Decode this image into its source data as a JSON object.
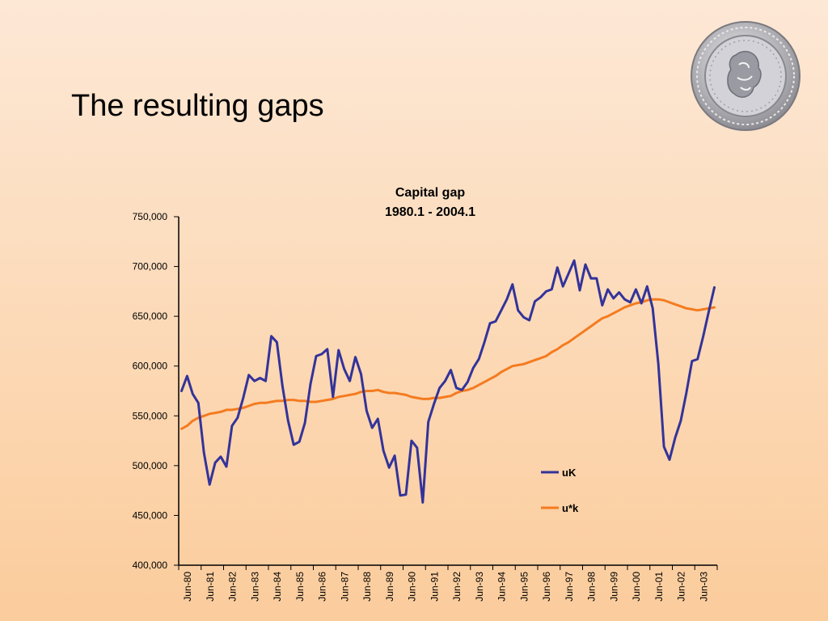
{
  "slide": {
    "title": "The resulting gaps"
  },
  "chart_data": {
    "type": "line",
    "title": "Capital gap",
    "subtitle": "1980.1 - 2004.1",
    "xlabel": "",
    "ylabel": "",
    "ylim": [
      400000,
      750000
    ],
    "y_ticks": [
      "400,000",
      "450,000",
      "500,000",
      "550,000",
      "600,000",
      "650,000",
      "700,000",
      "750,000"
    ],
    "x_ticks": [
      "Jun-80",
      "Jun-81",
      "Jun-82",
      "Jun-83",
      "Jun-84",
      "Jun-85",
      "Jun-86",
      "Jun-87",
      "Jun-88",
      "Jun-89",
      "Jun-90",
      "Jun-91",
      "Jun-92",
      "Jun-93",
      "Jun-94",
      "Jun-95",
      "Jun-96",
      "Jun-97",
      "Jun-98",
      "Jun-99",
      "Jun-00",
      "Jun-01",
      "Jun-02",
      "Jun-03"
    ],
    "x_start": "1980.1",
    "x_end": "2004.1",
    "frequency": "quarterly",
    "grid": false,
    "legend_position": "lower-right",
    "series": [
      {
        "name": "uK",
        "color": "#33339a",
        "values": [
          575000,
          590000,
          572000,
          563000,
          513000,
          481000,
          503000,
          509000,
          499000,
          540000,
          548000,
          568000,
          591000,
          585000,
          588000,
          585000,
          630000,
          624000,
          580000,
          545000,
          521000,
          524000,
          543000,
          582000,
          610000,
          612000,
          617000,
          569000,
          616000,
          597000,
          585000,
          609000,
          592000,
          555000,
          538000,
          547000,
          515000,
          498000,
          510000,
          470000,
          471000,
          525000,
          518000,
          463000,
          544000,
          562000,
          578000,
          585000,
          596000,
          578000,
          576000,
          584000,
          598000,
          607000,
          624000,
          643000,
          645000,
          656000,
          667000,
          682000,
          656000,
          649000,
          646000,
          665000,
          669000,
          675000,
          677000,
          699000,
          680000,
          693000,
          706000,
          676000,
          702000,
          688000,
          688000,
          661000,
          677000,
          668000,
          674000,
          667000,
          664000,
          677000,
          663000,
          680000,
          658000,
          602000,
          519000,
          506000,
          528000,
          545000,
          573000,
          605000,
          607000,
          630000,
          655000,
          679000
        ]
      },
      {
        "name": "u*k",
        "color": "#f47b20",
        "values": [
          537000,
          540000,
          545000,
          548000,
          550000,
          552000,
          553000,
          554000,
          556000,
          556000,
          557000,
          558000,
          560000,
          562000,
          563000,
          563000,
          564000,
          565000,
          565000,
          566000,
          566000,
          565000,
          565000,
          564000,
          564000,
          565000,
          566000,
          567000,
          569000,
          570000,
          571000,
          572000,
          574000,
          575000,
          575000,
          576000,
          574000,
          573000,
          573000,
          572000,
          571000,
          569000,
          568000,
          567000,
          567000,
          568000,
          568000,
          569000,
          570000,
          573000,
          575000,
          576000,
          578000,
          581000,
          584000,
          587000,
          590000,
          594000,
          597000,
          600000,
          601000,
          602000,
          604000,
          606000,
          608000,
          610000,
          614000,
          617000,
          621000,
          624000,
          628000,
          632000,
          636000,
          640000,
          644000,
          648000,
          650000,
          653000,
          656000,
          659000,
          661000,
          663000,
          664000,
          666000,
          667000,
          667000,
          666000,
          664000,
          662000,
          660000,
          658000,
          657000,
          656000,
          657000,
          658000,
          659000
        ]
      }
    ]
  }
}
